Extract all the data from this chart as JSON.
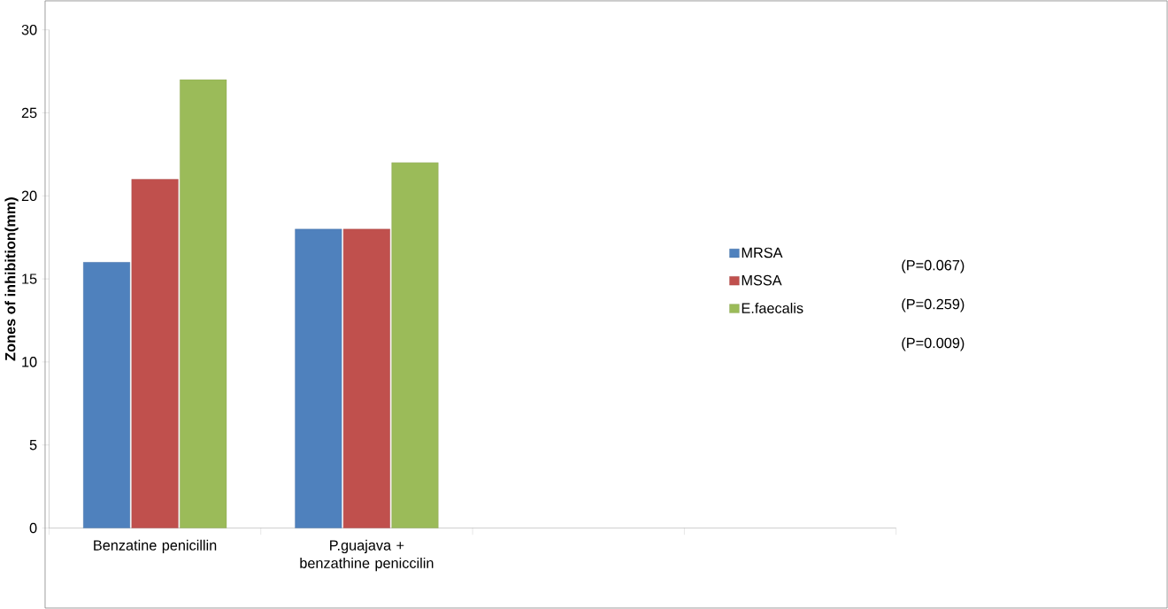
{
  "chart_data": {
    "type": "bar",
    "ylabel": "Zones of inhibition(mm)",
    "categories": [
      "Benzatine penicillin",
      "P.guajava + benzathine peniccilin",
      null,
      null
    ],
    "series": [
      {
        "name": "MRSA",
        "color": "#4f81bd",
        "values": [
          16,
          18,
          null,
          null
        ]
      },
      {
        "name": "MSSA",
        "color": "#c0504d",
        "values": [
          21,
          18,
          null,
          null
        ]
      },
      {
        "name": "E.faecalis",
        "color": "#9bbb59",
        "values": [
          27,
          22,
          null,
          null
        ]
      }
    ],
    "annotations": [
      "(P=0.067)",
      "(P=0.259)",
      "(P=0.009)"
    ],
    "ylim": [
      0,
      30
    ],
    "yticks": [
      0,
      5,
      10,
      15,
      20,
      25,
      30
    ],
    "grid": false,
    "legend": "right"
  }
}
